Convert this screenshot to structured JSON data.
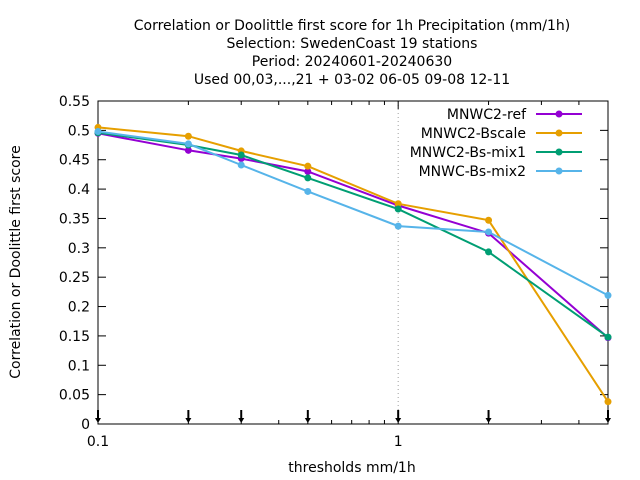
{
  "chart_data": {
    "type": "line",
    "title_lines": [
      "Correlation or Doolittle first score  for 1h Precipitation (mm/1h)",
      "Selection: SwedenCoast     19 stations",
      "Period: 20240601-20240630",
      "Used 00,03,...,21 + 03-02 06-05 09-08 12-11"
    ],
    "xlabel": "thresholds mm/1h",
    "ylabel": "Correlation or Doolittle first score",
    "x_scale": "log",
    "xlim": [
      0.1,
      5
    ],
    "ylim": [
      0,
      0.55
    ],
    "x_ticks": [
      {
        "value": 0.1,
        "label": "0.1"
      },
      {
        "value": 1,
        "label": "1"
      }
    ],
    "y_ticks": [
      {
        "value": 0,
        "label": "0"
      },
      {
        "value": 0.05,
        "label": "0.05"
      },
      {
        "value": 0.1,
        "label": "0.1"
      },
      {
        "value": 0.15,
        "label": "0.15"
      },
      {
        "value": 0.2,
        "label": "0.2"
      },
      {
        "value": 0.25,
        "label": "0.25"
      },
      {
        "value": 0.3,
        "label": "0.3"
      },
      {
        "value": 0.35,
        "label": "0.35"
      },
      {
        "value": 0.4,
        "label": "0.4"
      },
      {
        "value": 0.45,
        "label": "0.45"
      },
      {
        "value": 0.5,
        "label": "0.5"
      },
      {
        "value": 0.55,
        "label": "0.55"
      }
    ],
    "threshold_markers": [
      0.1,
      0.2,
      0.3,
      0.5,
      1,
      2,
      5
    ],
    "grid": "vertical dotted at x=1",
    "legend_position": "top-right",
    "x": [
      0.1,
      0.2,
      0.3,
      0.5,
      1,
      2,
      5
    ],
    "series": [
      {
        "name": "MNWC2-ref",
        "color": "#9400d3",
        "marker": "circle",
        "values": [
          0.495,
          0.466,
          0.452,
          0.43,
          0.372,
          0.325,
          0.147
        ]
      },
      {
        "name": "MNWC2-Bscale",
        "color": "#e69f00",
        "marker": "circle",
        "values": [
          0.505,
          0.49,
          0.465,
          0.439,
          0.375,
          0.347,
          0.038
        ]
      },
      {
        "name": "MNWC2-Bs-mix1",
        "color": "#009e73",
        "marker": "circle",
        "values": [
          0.496,
          0.475,
          0.458,
          0.419,
          0.366,
          0.293,
          0.148
        ]
      },
      {
        "name": "MNWC-Bs-mix2",
        "color": "#56b4e9",
        "marker": "circle",
        "values": [
          0.498,
          0.477,
          0.441,
          0.396,
          0.337,
          0.327,
          0.219
        ]
      }
    ]
  }
}
